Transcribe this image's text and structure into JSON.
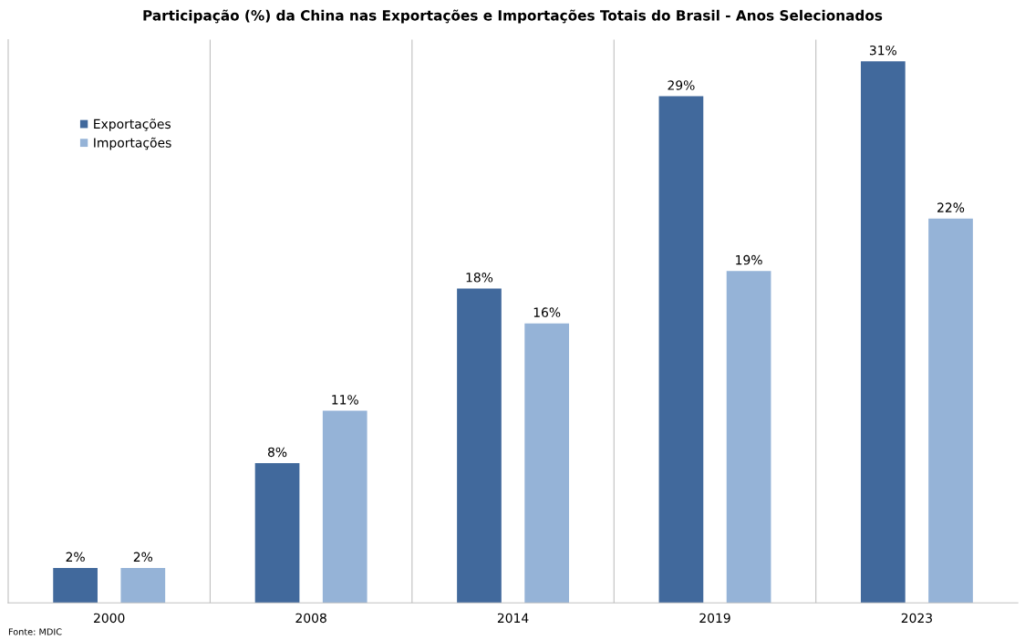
{
  "chart_data": {
    "type": "bar",
    "title": "Participação (%) da China nas Exportações e Importações Totais do Brasil - Anos Selecionados",
    "categories": [
      "2000",
      "2008",
      "2014",
      "2019",
      "2023"
    ],
    "series": [
      {
        "name": "Exportações",
        "color": "#41699c",
        "values": [
          2,
          8,
          18,
          29,
          31
        ],
        "value_labels": [
          "2%",
          "8%",
          "18%",
          "29%",
          "31%"
        ]
      },
      {
        "name": "Importações",
        "color": "#95b3d7",
        "values": [
          2,
          11,
          16,
          19,
          22
        ],
        "value_labels": [
          "2%",
          "11%",
          "16%",
          "19%",
          "22%"
        ]
      }
    ],
    "grid": "x",
    "legend": "top left",
    "annotations": [
      "Fonte: MDIC"
    ]
  }
}
